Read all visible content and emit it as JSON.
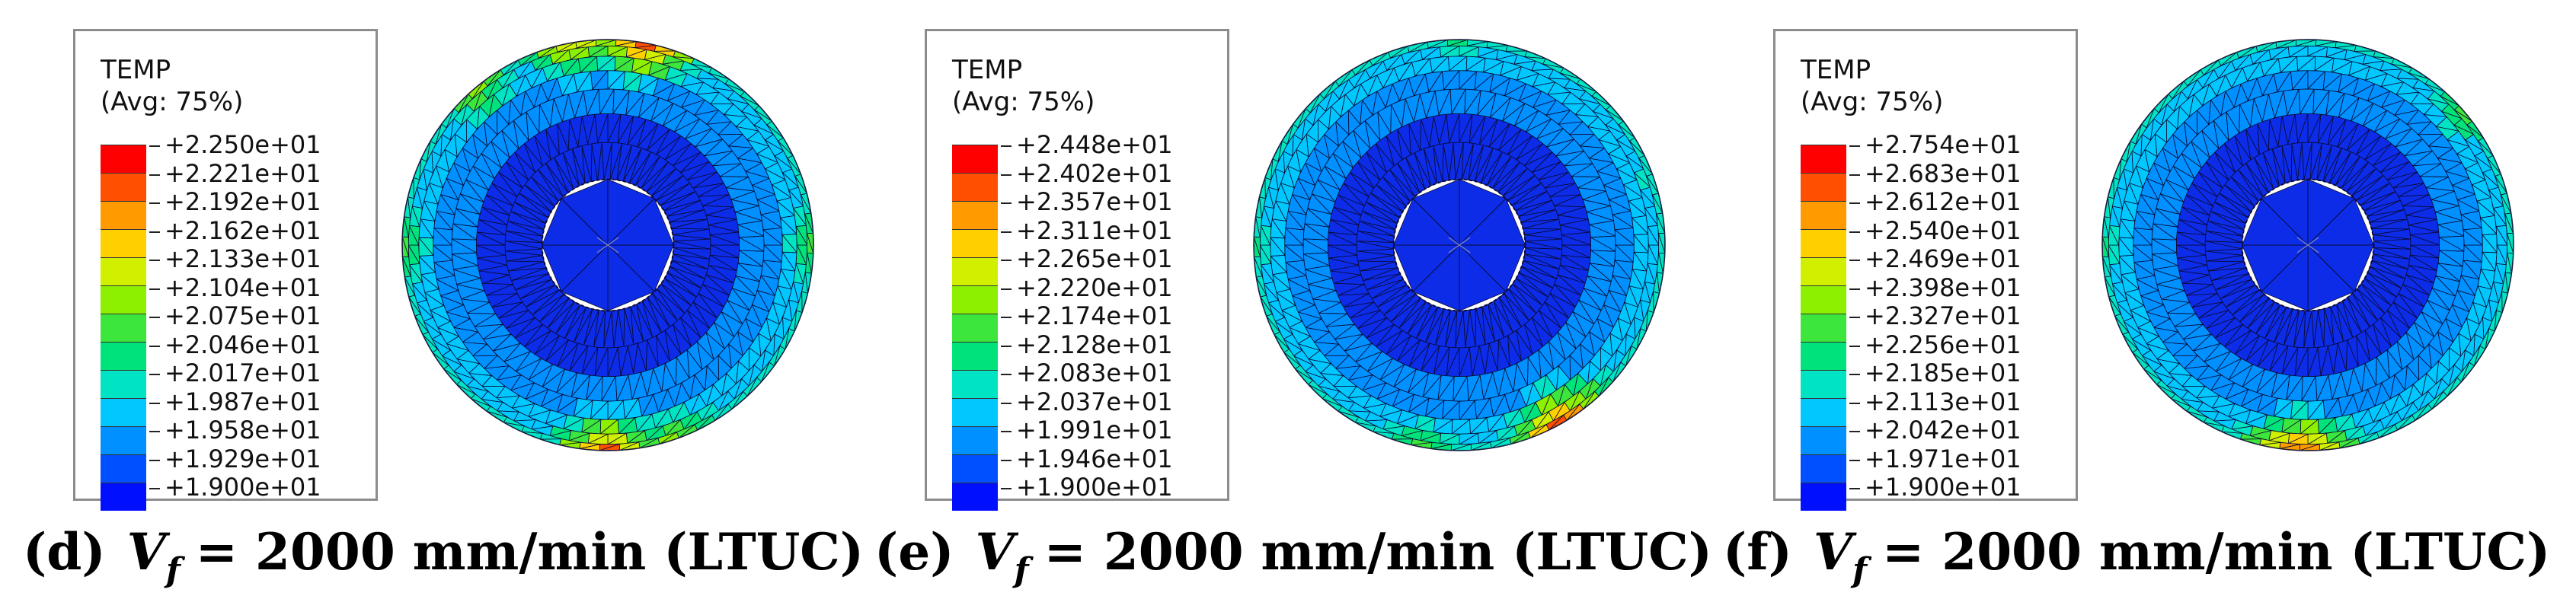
{
  "panels": [
    {
      "id": "d",
      "legend": {
        "title": "TEMP",
        "subtitle": "(Avg: 75%)",
        "values": [
          "+2.250e+01",
          "+2.221e+01",
          "+2.192e+01",
          "+2.162e+01",
          "+2.133e+01",
          "+2.104e+01",
          "+2.075e+01",
          "+2.046e+01",
          "+2.017e+01",
          "+1.987e+01",
          "+1.958e+01",
          "+1.929e+01",
          "+1.900e+01"
        ]
      },
      "hotspots": [
        {
          "angle": -80,
          "level": 0.95
        },
        {
          "angle": -100,
          "level": 0.75
        },
        {
          "angle": -130,
          "level": 0.6
        },
        {
          "angle": 90,
          "level": 0.9
        },
        {
          "angle": 70,
          "level": 0.6
        },
        {
          "angle": 180,
          "level": 0.55
        },
        {
          "angle": 0,
          "level": 0.5
        }
      ],
      "caption": {
        "label": "(d)",
        "var": "V",
        "sub": "f",
        "text": "= 2000 mm/min (LTUC)"
      }
    },
    {
      "id": "e",
      "legend": {
        "title": "TEMP",
        "subtitle": "(Avg: 75%)",
        "values": [
          "+2.448e+01",
          "+2.402e+01",
          "+2.357e+01",
          "+2.311e+01",
          "+2.265e+01",
          "+2.220e+01",
          "+2.174e+01",
          "+2.128e+01",
          "+2.083e+01",
          "+2.037e+01",
          "+1.991e+01",
          "+1.946e+01",
          "+1.900e+01"
        ]
      },
      "hotspots": [
        {
          "angle": 60,
          "level": 0.95
        },
        {
          "angle": 100,
          "level": 0.55
        },
        {
          "angle": -90,
          "level": 0.4
        },
        {
          "angle": 180,
          "level": 0.45
        },
        {
          "angle": -20,
          "level": 0.35
        }
      ],
      "caption": {
        "label": "(e)",
        "var": "V",
        "sub": "f",
        "text": "= 2000 mm/min (LTUC)"
      }
    },
    {
      "id": "f",
      "legend": {
        "title": "TEMP",
        "subtitle": "(Avg: 75%)",
        "values": [
          "+2.754e+01",
          "+2.683e+01",
          "+2.612e+01",
          "+2.540e+01",
          "+2.469e+01",
          "+2.398e+01",
          "+2.327e+01",
          "+2.256e+01",
          "+2.185e+01",
          "+2.113e+01",
          "+2.042e+01",
          "+1.971e+01",
          "+1.900e+01"
        ]
      },
      "hotspots": [
        {
          "angle": 92,
          "level": 0.95
        },
        {
          "angle": -40,
          "level": 0.5
        },
        {
          "angle": 180,
          "level": 0.4
        },
        {
          "angle": 140,
          "level": 0.35
        }
      ],
      "caption": {
        "label": "(f)",
        "var": "V",
        "sub": "f",
        "text": "= 2000 mm/min (LTUC)"
      }
    }
  ],
  "colors": [
    "#ff0000",
    "#ff4f00",
    "#ff9a00",
    "#ffd000",
    "#d0f000",
    "#8cf000",
    "#3ce63c",
    "#00e27a",
    "#00e4c4",
    "#00c8ff",
    "#0090ff",
    "#0050ff",
    "#0010ff"
  ],
  "base_color": "#0d2ce8"
}
